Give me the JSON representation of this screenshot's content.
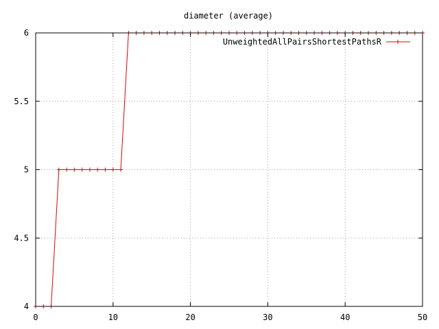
{
  "chart_data": {
    "type": "line",
    "title": "diameter (average)",
    "xlabel": "",
    "ylabel": "",
    "xlim": [
      0,
      50
    ],
    "ylim": [
      4,
      6
    ],
    "xticks": [
      0,
      10,
      20,
      30,
      40,
      50
    ],
    "yticks": [
      4,
      4.5,
      5,
      5.5,
      6
    ],
    "xtick_labels": [
      "0",
      "10",
      "20",
      "30",
      "40",
      "50"
    ],
    "ytick_labels": [
      "4",
      "4.5",
      "5",
      "5.5",
      "6"
    ],
    "grid": true,
    "legend_position": "top-right",
    "colors": {
      "series": "#e00000",
      "grid": "#a0a0a0",
      "axis": "#000000"
    },
    "series": [
      {
        "name": "UnweightedAllPairsShortestPathsR",
        "marker": "plus",
        "x": [
          0,
          1,
          2,
          3,
          4,
          5,
          6,
          7,
          8,
          9,
          10,
          11,
          12,
          13,
          14,
          15,
          16,
          17,
          18,
          19,
          20,
          21,
          22,
          23,
          24,
          25,
          26,
          27,
          28,
          29,
          30,
          31,
          32,
          33,
          34,
          35,
          36,
          37,
          38,
          39,
          40,
          41,
          42,
          43,
          44,
          45,
          46,
          47,
          48,
          49,
          50
        ],
        "y": [
          4,
          4,
          4,
          5,
          5,
          5,
          5,
          5,
          5,
          5,
          5,
          5,
          6,
          6,
          6,
          6,
          6,
          6,
          6,
          6,
          6,
          6,
          6,
          6,
          6,
          6,
          6,
          6,
          6,
          6,
          6,
          6,
          6,
          6,
          6,
          6,
          6,
          6,
          6,
          6,
          6,
          6,
          6,
          6,
          6,
          6,
          6,
          6,
          6,
          6,
          6
        ]
      }
    ]
  }
}
